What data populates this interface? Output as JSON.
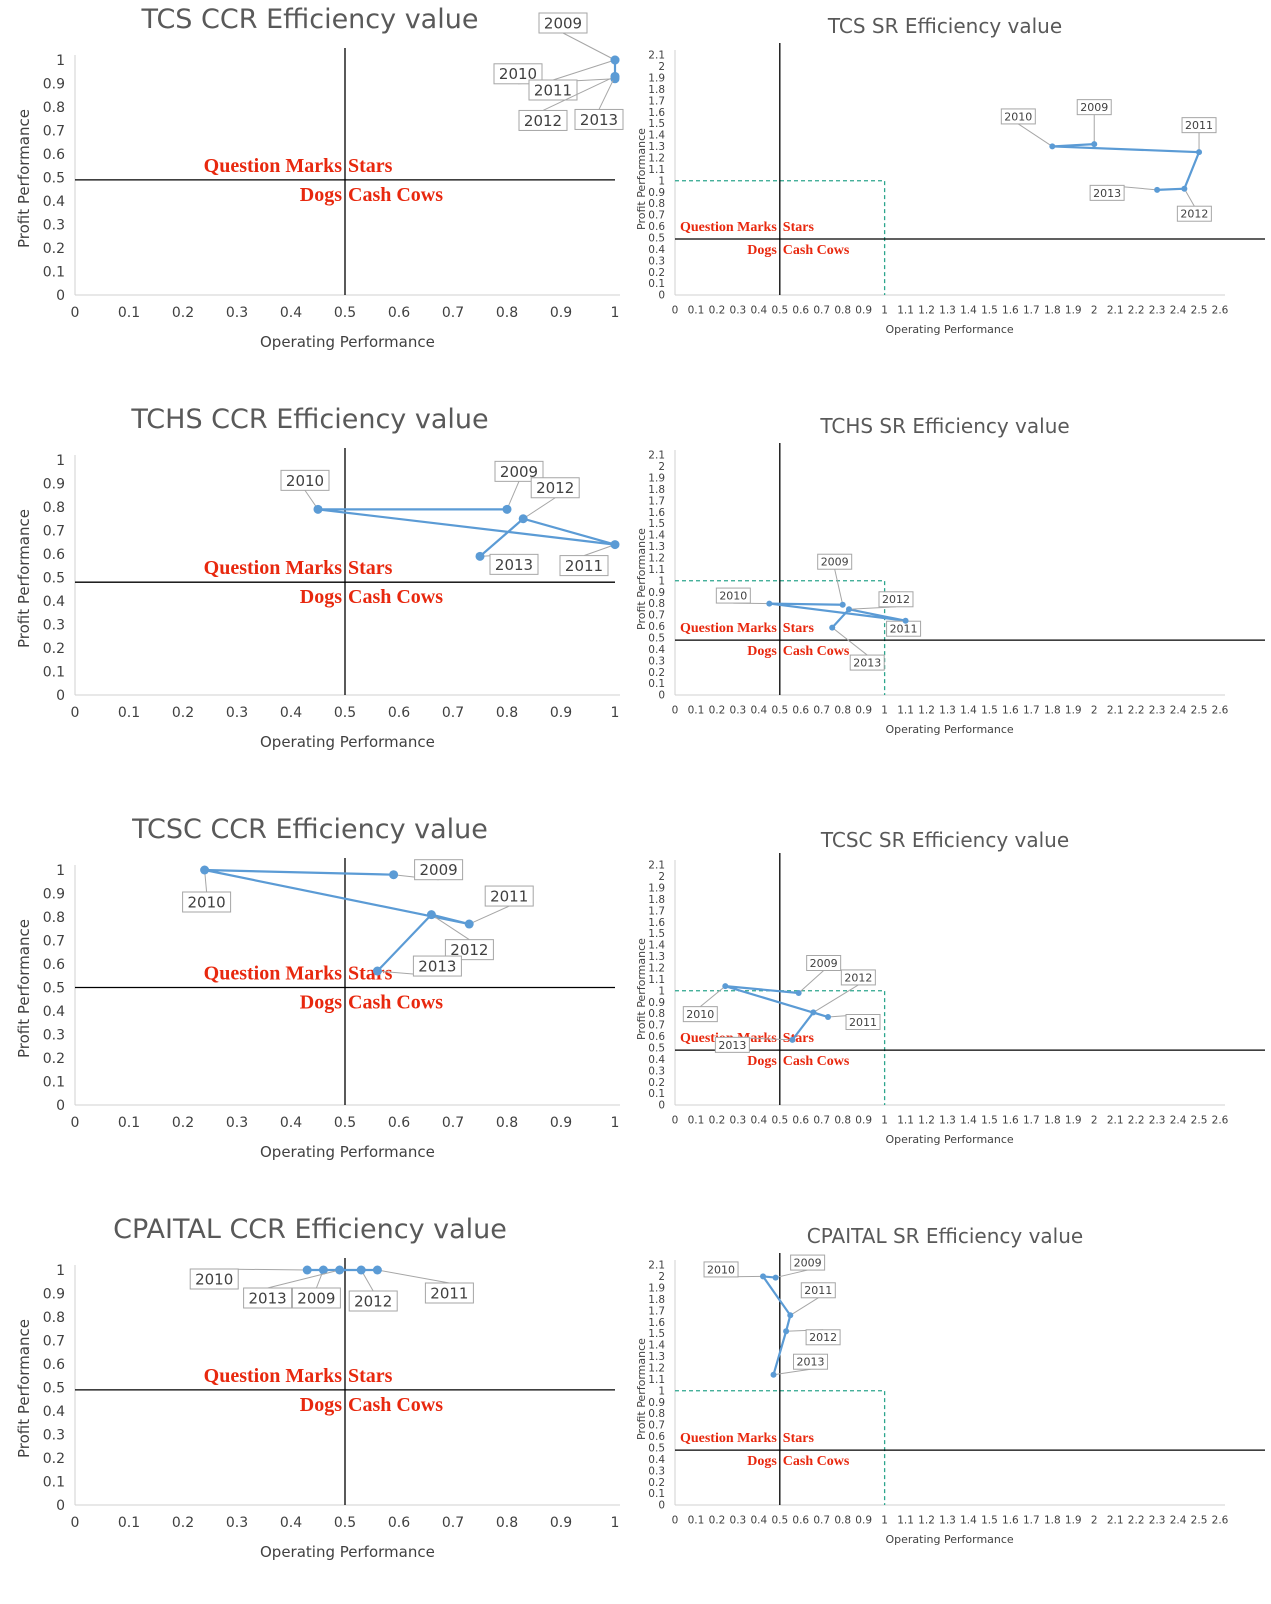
{
  "colors": {
    "series": "#5b9bd5",
    "quadrant_labels": "#e8280e",
    "reference_box": "#2ca58d",
    "axis": "#000000",
    "callout_border": "#a6a6a6",
    "title": "#595959"
  },
  "quadrant_labels": {
    "question_marks": "Question Marks",
    "stars": "Stars",
    "dogs": "Dogs",
    "cash_cows": "Cash Cows"
  },
  "chart_data": [
    {
      "id": "tcs-ccr",
      "type": "line",
      "model": "CCR",
      "title": "TCS CCR Efficiency value",
      "xlabel": "Operating Performance",
      "ylabel": "Profit Performance",
      "xlim": [
        0,
        1
      ],
      "ylim": [
        0,
        1
      ],
      "x_ticks": [
        "0",
        "0.1",
        "0.2",
        "0.3",
        "0.4",
        "0.5",
        "0.6",
        "0.7",
        "0.8",
        "0.9",
        "1"
      ],
      "y_ticks": [
        "0",
        "0.1",
        "0.2",
        "0.3",
        "0.4",
        "0.5",
        "0.6",
        "0.7",
        "0.8",
        "0.9",
        "1"
      ],
      "quadrant_lines": {
        "x": 0.5,
        "y": 0.49
      },
      "grid": false,
      "legend": "none",
      "series": [
        {
          "points": [
            {
              "label": "2009",
              "x": 1.0,
              "y": 1.0
            },
            {
              "label": "2010",
              "x": 1.0,
              "y": 0.92
            },
            {
              "label": "2011",
              "x": 1.0,
              "y": 1.0
            },
            {
              "label": "2012",
              "x": 1.0,
              "y": 0.93
            },
            {
              "label": "2013",
              "x": 1.0,
              "y": 0.93
            }
          ]
        }
      ]
    },
    {
      "id": "tcs-sr",
      "type": "line",
      "model": "SR",
      "title": "TCS SR Efficiency value",
      "xlabel": "Operating Performance",
      "ylabel": "Profit Performance",
      "xlim": [
        0,
        2.6
      ],
      "ylim": [
        0,
        2.1
      ],
      "x_ticks": [
        "0",
        "0.1",
        "0.2",
        "0.3",
        "0.4",
        "0.5",
        "0.6",
        "0.7",
        "0.8",
        "0.9",
        "1",
        "1.1",
        "1.2",
        "1.3",
        "1.4",
        "1.5",
        "1.6",
        "1.7",
        "1.8",
        "1.9",
        "2",
        "2.1",
        "2.2",
        "2.3",
        "2.4",
        "2.5",
        "2.6"
      ],
      "y_ticks": [
        "0",
        "0.1",
        "0.2",
        "0.3",
        "0.4",
        "0.5",
        "0.6",
        "0.7",
        "0.8",
        "0.9",
        "1",
        "1.1",
        "1.2",
        "1.3",
        "1.4",
        "1.5",
        "1.6",
        "1.7",
        "1.8",
        "1.9",
        "2",
        "2.1"
      ],
      "quadrant_lines": {
        "x": 0.5,
        "y": 0.49
      },
      "reference_box": {
        "x": 1,
        "y": 1
      },
      "grid": false,
      "legend": "none",
      "series": [
        {
          "points": [
            {
              "label": "2009",
              "x": 2.0,
              "y": 1.32
            },
            {
              "label": "2010",
              "x": 1.8,
              "y": 1.3
            },
            {
              "label": "2011",
              "x": 2.5,
              "y": 1.25
            },
            {
              "label": "2012",
              "x": 2.43,
              "y": 0.93
            },
            {
              "label": "2013",
              "x": 2.3,
              "y": 0.92
            }
          ]
        }
      ]
    },
    {
      "id": "tchs-ccr",
      "type": "line",
      "model": "CCR",
      "title": "TCHS CCR Efficiency value",
      "xlabel": "Operating Performance",
      "ylabel": "Profit Performance",
      "xlim": [
        0,
        1
      ],
      "ylim": [
        0,
        1
      ],
      "x_ticks": [
        "0",
        "0.1",
        "0.2",
        "0.3",
        "0.4",
        "0.5",
        "0.6",
        "0.7",
        "0.8",
        "0.9",
        "1"
      ],
      "y_ticks": [
        "0",
        "0.1",
        "0.2",
        "0.3",
        "0.4",
        "0.5",
        "0.6",
        "0.7",
        "0.8",
        "0.9",
        "1"
      ],
      "quadrant_lines": {
        "x": 0.5,
        "y": 0.48
      },
      "grid": false,
      "legend": "none",
      "series": [
        {
          "points": [
            {
              "label": "2009",
              "x": 0.8,
              "y": 0.79
            },
            {
              "label": "2010",
              "x": 0.45,
              "y": 0.79
            },
            {
              "label": "2011",
              "x": 1.0,
              "y": 0.64
            },
            {
              "label": "2012",
              "x": 0.83,
              "y": 0.75
            },
            {
              "label": "2013",
              "x": 0.75,
              "y": 0.59
            }
          ]
        }
      ]
    },
    {
      "id": "tchs-sr",
      "type": "line",
      "model": "SR",
      "title": "TCHS SR Efficiency value",
      "xlabel": "Operating Performance",
      "ylabel": "Profit Performance",
      "xlim": [
        0,
        2.6
      ],
      "ylim": [
        0,
        2.1
      ],
      "x_ticks": [
        "0",
        "0.1",
        "0.2",
        "0.3",
        "0.4",
        "0.5",
        "0.6",
        "0.7",
        "0.8",
        "0.9",
        "1",
        "1.1",
        "1.2",
        "1.3",
        "1.4",
        "1.5",
        "1.6",
        "1.7",
        "1.8",
        "1.9",
        "2",
        "2.1",
        "2.2",
        "2.3",
        "2.4",
        "2.5",
        "2.6"
      ],
      "y_ticks": [
        "0",
        "0.1",
        "0.2",
        "0.3",
        "0.4",
        "0.5",
        "0.6",
        "0.7",
        "0.8",
        "0.9",
        "1",
        "1.1",
        "1.2",
        "1.3",
        "1.4",
        "1.5",
        "1.6",
        "1.7",
        "1.8",
        "1.9",
        "2",
        "2.1"
      ],
      "quadrant_lines": {
        "x": 0.5,
        "y": 0.48
      },
      "reference_box": {
        "x": 1,
        "y": 1
      },
      "grid": false,
      "legend": "none",
      "series": [
        {
          "points": [
            {
              "label": "2009",
              "x": 0.8,
              "y": 0.79
            },
            {
              "label": "2010",
              "x": 0.45,
              "y": 0.8
            },
            {
              "label": "2011",
              "x": 1.1,
              "y": 0.65
            },
            {
              "label": "2012",
              "x": 0.83,
              "y": 0.75
            },
            {
              "label": "2013",
              "x": 0.75,
              "y": 0.59
            }
          ]
        }
      ]
    },
    {
      "id": "tcsc-ccr",
      "type": "line",
      "model": "CCR",
      "title": "TCSC CCR Efficiency value",
      "xlabel": "Operating Performance",
      "ylabel": "Profit Performance",
      "xlim": [
        0,
        1
      ],
      "ylim": [
        0,
        1
      ],
      "x_ticks": [
        "0",
        "0.1",
        "0.2",
        "0.3",
        "0.4",
        "0.5",
        "0.6",
        "0.7",
        "0.8",
        "0.9",
        "1"
      ],
      "y_ticks": [
        "0",
        "0.1",
        "0.2",
        "0.3",
        "0.4",
        "0.5",
        "0.6",
        "0.7",
        "0.8",
        "0.9",
        "1"
      ],
      "quadrant_lines": {
        "x": 0.5,
        "y": 0.5
      },
      "grid": false,
      "legend": "none",
      "series": [
        {
          "points": [
            {
              "label": "2009",
              "x": 0.59,
              "y": 0.98
            },
            {
              "label": "2010",
              "x": 0.24,
              "y": 1.0
            },
            {
              "label": "2011",
              "x": 0.73,
              "y": 0.77
            },
            {
              "label": "2012",
              "x": 0.66,
              "y": 0.81
            },
            {
              "label": "2013",
              "x": 0.56,
              "y": 0.57
            }
          ]
        }
      ]
    },
    {
      "id": "tcsc-sr",
      "type": "line",
      "model": "SR",
      "title": "TCSC SR Efficiency value",
      "xlabel": "Operating Performance",
      "ylabel": "Profit Performance",
      "xlim": [
        0,
        2.6
      ],
      "ylim": [
        0,
        2.1
      ],
      "x_ticks": [
        "0",
        "0.1",
        "0.2",
        "0.3",
        "0.4",
        "0.5",
        "0.6",
        "0.7",
        "0.8",
        "0.9",
        "1",
        "1.1",
        "1.2",
        "1.3",
        "1.4",
        "1.5",
        "1.6",
        "1.7",
        "1.8",
        "1.9",
        "2",
        "2.1",
        "2.2",
        "2.3",
        "2.4",
        "2.5",
        "2.6"
      ],
      "y_ticks": [
        "0",
        "0.1",
        "0.2",
        "0.3",
        "0.4",
        "0.5",
        "0.6",
        "0.7",
        "0.8",
        "0.9",
        "1",
        "1.1",
        "1.2",
        "1.3",
        "1.4",
        "1.5",
        "1.6",
        "1.7",
        "1.8",
        "1.9",
        "2",
        "2.1"
      ],
      "quadrant_lines": {
        "x": 0.5,
        "y": 0.48
      },
      "reference_box": {
        "x": 1,
        "y": 1
      },
      "grid": false,
      "legend": "none",
      "series": [
        {
          "points": [
            {
              "label": "2009",
              "x": 0.59,
              "y": 0.98
            },
            {
              "label": "2010",
              "x": 0.24,
              "y": 1.04
            },
            {
              "label": "2011",
              "x": 0.73,
              "y": 0.77
            },
            {
              "label": "2012",
              "x": 0.66,
              "y": 0.81
            },
            {
              "label": "2013",
              "x": 0.56,
              "y": 0.57
            }
          ]
        }
      ]
    },
    {
      "id": "capital-ccr",
      "type": "line",
      "model": "CCR",
      "title": "CPAITAL CCR Efficiency value",
      "xlabel": "Operating Performance",
      "ylabel": "Profit Performance",
      "xlim": [
        0,
        1
      ],
      "ylim": [
        0,
        1
      ],
      "x_ticks": [
        "0",
        "0.1",
        "0.2",
        "0.3",
        "0.4",
        "0.5",
        "0.6",
        "0.7",
        "0.8",
        "0.9",
        "1"
      ],
      "y_ticks": [
        "0",
        "0.1",
        "0.2",
        "0.3",
        "0.4",
        "0.5",
        "0.6",
        "0.7",
        "0.8",
        "0.9",
        "1"
      ],
      "quadrant_lines": {
        "x": 0.5,
        "y": 0.49
      },
      "grid": false,
      "legend": "none",
      "series": [
        {
          "points": [
            {
              "label": "2009",
              "x": 0.46,
              "y": 1.0
            },
            {
              "label": "2010",
              "x": 0.43,
              "y": 1.0
            },
            {
              "label": "2011",
              "x": 0.56,
              "y": 1.0
            },
            {
              "label": "2012",
              "x": 0.53,
              "y": 1.0
            },
            {
              "label": "2013",
              "x": 0.49,
              "y": 1.0
            }
          ]
        }
      ]
    },
    {
      "id": "capital-sr",
      "type": "line",
      "model": "SR",
      "title": "CPAITAL SR Efficiency value",
      "xlabel": "Operating Performance",
      "ylabel": "Profit Performance",
      "xlim": [
        0,
        2.6
      ],
      "ylim": [
        0,
        2.1
      ],
      "x_ticks": [
        "0",
        "0.1",
        "0.2",
        "0.3",
        "0.4",
        "0.5",
        "0.6",
        "0.7",
        "0.8",
        "0.9",
        "1",
        "1.1",
        "1.2",
        "1.3",
        "1.4",
        "1.5",
        "1.6",
        "1.7",
        "1.8",
        "1.9",
        "2",
        "2.1",
        "2.2",
        "2.3",
        "2.4",
        "2.5",
        "2.6"
      ],
      "y_ticks": [
        "0",
        "0.1",
        "0.2",
        "0.3",
        "0.4",
        "0.5",
        "0.6",
        "0.7",
        "0.8",
        "0.9",
        "1",
        "1.1",
        "1.2",
        "1.3",
        "1.4",
        "1.5",
        "1.6",
        "1.7",
        "1.8",
        "1.9",
        "2",
        "2.1"
      ],
      "quadrant_lines": {
        "x": 0.5,
        "y": 0.48
      },
      "reference_box": {
        "x": 1,
        "y": 1
      },
      "grid": false,
      "legend": "none",
      "series": [
        {
          "points": [
            {
              "label": "2009",
              "x": 0.48,
              "y": 1.99
            },
            {
              "label": "2010",
              "x": 0.42,
              "y": 2.0
            },
            {
              "label": "2011",
              "x": 0.55,
              "y": 1.66
            },
            {
              "label": "2012",
              "x": 0.53,
              "y": 1.52
            },
            {
              "label": "2013",
              "x": 0.47,
              "y": 1.14
            }
          ]
        }
      ]
    }
  ]
}
